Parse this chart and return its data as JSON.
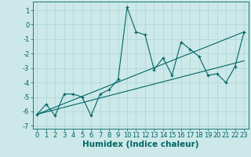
{
  "title": "",
  "xlabel": "Humidex (Indice chaleur)",
  "ylabel": "",
  "background_color": "#cce8e8",
  "line_color": "#006666",
  "xlim": [
    -0.5,
    23.5
  ],
  "ylim": [
    -7.2,
    1.6
  ],
  "yticks": [
    1,
    0,
    -1,
    -2,
    -3,
    -4,
    -5,
    -6,
    -7
  ],
  "xticks": [
    0,
    1,
    2,
    3,
    4,
    5,
    6,
    7,
    8,
    9,
    10,
    11,
    12,
    13,
    14,
    15,
    16,
    17,
    18,
    19,
    20,
    21,
    22,
    23
  ],
  "line1_x": [
    0,
    1,
    2,
    3,
    4,
    5,
    6,
    7,
    8,
    9,
    10,
    11,
    12,
    13,
    14,
    15,
    16,
    17,
    18,
    19,
    20,
    21,
    22,
    23
  ],
  "line1_y": [
    -6.2,
    -5.5,
    -6.3,
    -4.8,
    -4.8,
    -5.0,
    -6.3,
    -4.8,
    -4.5,
    -3.8,
    1.2,
    -0.5,
    -0.7,
    -3.1,
    -2.3,
    -3.5,
    -1.2,
    -1.7,
    -2.2,
    -3.5,
    -3.4,
    -4.0,
    -2.9,
    -0.5
  ],
  "line2_x": [
    0,
    23
  ],
  "line2_y": [
    -6.2,
    -0.5
  ],
  "line3_x": [
    0,
    23
  ],
  "line3_y": [
    -6.2,
    -2.5
  ],
  "grid_color": "#aad4d4",
  "tick_fontsize": 6,
  "label_fontsize": 7.5
}
